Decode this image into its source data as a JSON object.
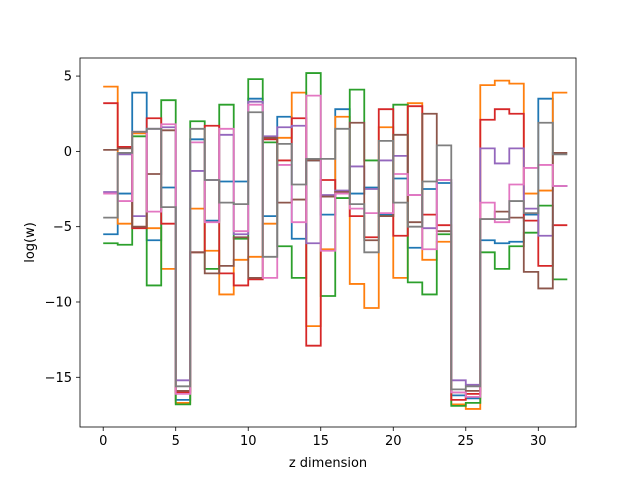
{
  "chart_data": {
    "type": "line",
    "step": "post",
    "xlabel": "z dimension",
    "ylabel": "log(w)",
    "xlim": [
      -1.6,
      32.6
    ],
    "ylim": [
      -18.3,
      6.2
    ],
    "x_ticks": [
      0,
      5,
      10,
      15,
      20,
      25,
      30
    ],
    "y_ticks": [
      5,
      0,
      -5,
      -10,
      -15
    ],
    "x_tick_labels": [
      "0",
      "5",
      "10",
      "15",
      "20",
      "25",
      "30"
    ],
    "y_tick_labels": [
      "5",
      "0",
      "−5",
      "−10",
      "−15"
    ],
    "grid": false,
    "legend": "none",
    "series": [
      {
        "color": "#1f77b4",
        "values": [
          -5.5,
          -2.8,
          3.9,
          -5.9,
          -2.4,
          -16.5,
          0.8,
          -4.6,
          -2.0,
          -2.0,
          3.5,
          -4.3,
          2.3,
          -5.8,
          -0.6,
          -4.2,
          2.8,
          -2.8,
          -2.4,
          -4.2,
          -1.8,
          -6.4,
          -2.5,
          -2.1,
          -16.2,
          -16.4,
          -5.9,
          -6.1,
          -6.0,
          -4.2,
          3.5,
          -2.3
        ]
      },
      {
        "color": "#ff7f0e",
        "values": [
          4.3,
          -4.8,
          1.2,
          -5.1,
          -7.8,
          -16.7,
          -3.8,
          -6.6,
          -9.5,
          -7.2,
          -7.0,
          -4.8,
          0.9,
          3.9,
          -11.6,
          -6.5,
          2.3,
          -8.8,
          -10.4,
          1.6,
          -8.4,
          3.2,
          -7.2,
          -6.0,
          -16.8,
          -17.1,
          4.4,
          4.7,
          4.5,
          -2.8,
          -2.6,
          3.9
        ]
      },
      {
        "color": "#2ca02c",
        "values": [
          -6.1,
          -6.2,
          1.0,
          -8.9,
          3.4,
          -16.8,
          2.0,
          -7.8,
          3.1,
          -5.8,
          4.8,
          0.6,
          -6.3,
          -8.4,
          5.2,
          -9.6,
          -3.1,
          4.1,
          -0.6,
          -4.3,
          3.1,
          -8.7,
          -9.5,
          -5.5,
          -16.9,
          -16.7,
          -6.7,
          -7.8,
          -6.3,
          -5.4,
          -3.6,
          -8.5
        ]
      },
      {
        "color": "#d62728",
        "values": [
          3.2,
          0.3,
          -5.1,
          2.2,
          -4.8,
          -16.0,
          -6.7,
          1.7,
          -8.1,
          -8.9,
          -8.5,
          0.8,
          -0.6,
          2.2,
          -12.9,
          -1.9,
          -2.7,
          -4.3,
          -5.7,
          2.8,
          -5.6,
          3.0,
          -4.2,
          -4.9,
          -16.5,
          -16.1,
          2.1,
          2.8,
          2.5,
          -4.6,
          -7.6,
          -4.9
        ]
      },
      {
        "color": "#9467bd",
        "values": [
          -2.7,
          -0.2,
          -4.3,
          1.5,
          1.6,
          -15.2,
          -1.3,
          -1.9,
          1.1,
          -5.5,
          3.3,
          1.0,
          1.6,
          1.7,
          -6.1,
          -2.9,
          -2.6,
          -1.0,
          -2.5,
          -0.6,
          -0.3,
          -2.9,
          -5.1,
          -1.9,
          -15.2,
          -15.5,
          0.2,
          -0.8,
          0.2,
          -3.8,
          -5.6,
          -2.3
        ]
      },
      {
        "color": "#8c564b",
        "values": [
          0.1,
          0.2,
          -5.0,
          -1.5,
          1.4,
          -15.9,
          -6.7,
          -8.1,
          -7.6,
          -5.7,
          -8.4,
          0.9,
          -3.4,
          -3.2,
          -0.6,
          -3.0,
          -2.7,
          1.9,
          -5.9,
          -4.3,
          1.1,
          -4.7,
          2.5,
          -5.3,
          -16.0,
          -15.9,
          -4.5,
          -4.0,
          -4.4,
          -8.0,
          -9.1,
          -0.1
        ]
      },
      {
        "color": "#e377c2",
        "values": [
          -2.8,
          -3.3,
          1.3,
          -4.0,
          1.8,
          -16.1,
          0.6,
          -4.7,
          1.5,
          -5.3,
          3.1,
          -8.4,
          -0.9,
          -4.7,
          3.7,
          -6.6,
          -2.8,
          -3.8,
          -4.1,
          -4.1,
          -1.5,
          -2.9,
          -6.5,
          -1.9,
          -16.0,
          -16.3,
          -3.4,
          -4.7,
          -2.2,
          -1.1,
          -0.9,
          -2.3
        ]
      },
      {
        "color": "#7f7f7f",
        "values": [
          -4.4,
          -0.1,
          1.3,
          1.5,
          -3.7,
          -15.6,
          1.5,
          -1.9,
          -3.4,
          -3.5,
          2.6,
          -7.0,
          0.5,
          -2.2,
          -0.5,
          -0.5,
          1.5,
          -3.5,
          -6.7,
          0.7,
          -3.4,
          -5.0,
          -2.0,
          0.4,
          -15.8,
          -15.6,
          -4.5,
          -4.5,
          -3.3,
          -4.1,
          1.9,
          -0.2
        ]
      }
    ]
  }
}
